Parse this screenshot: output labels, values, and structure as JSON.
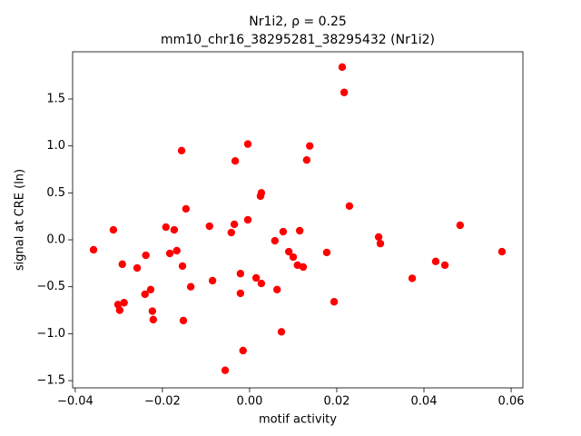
{
  "chart_data": {
    "type": "scatter",
    "title": "Nr1i2, ρ = 0.25",
    "subtitle": "mm10_chr16_38295281_38295432 (Nr1i2)",
    "x_label": "motif activity",
    "y_label": "signal at CRE (ln)",
    "color": "#ff0000",
    "x": [
      -0.0358,
      -0.03125,
      -0.0292,
      -0.0302,
      -0.0298,
      -0.0288,
      -0.0258,
      -0.0238,
      -0.024,
      -0.0227,
      -0.0223,
      -0.0221,
      -0.0192,
      -0.0183,
      -0.0173,
      -0.0167,
      -0.0156,
      -0.0154,
      -0.0152,
      -0.0146,
      -0.0135,
      -0.0092,
      -0.0085,
      -0.0056,
      -0.0042,
      -0.0035,
      -0.0033,
      -0.0021,
      -0.0021,
      -0.0015,
      -0.0004,
      -0.0004,
      0.0015,
      0.0025,
      0.0027,
      0.0027,
      0.0058,
      0.0063,
      0.0073,
      0.0077,
      0.009,
      0.01,
      0.011,
      0.0115,
      0.0123,
      0.0131,
      0.0138,
      0.0177,
      0.0194,
      0.02125,
      0.0217,
      0.0229,
      0.0296,
      0.03,
      0.0373,
      0.0427,
      0.0448,
      0.0483,
      0.0579
    ],
    "values": [
      -0.106,
      0.106,
      -0.26,
      -0.69,
      -0.75,
      -0.67,
      -0.3,
      -0.165,
      -0.58,
      -0.53,
      -0.76,
      -0.85,
      0.135,
      -0.145,
      0.106,
      -0.116,
      0.95,
      -0.28,
      -0.86,
      0.33,
      -0.5,
      0.145,
      -0.435,
      -1.39,
      0.077,
      0.165,
      0.84,
      -0.36,
      -0.57,
      -1.18,
      1.02,
      0.213,
      -0.406,
      0.465,
      0.5,
      -0.465,
      -0.01,
      -0.53,
      -0.98,
      0.087,
      -0.126,
      -0.184,
      -0.27,
      0.097,
      -0.29,
      0.85,
      1.0,
      -0.135,
      -0.66,
      1.84,
      1.57,
      0.36,
      0.03,
      -0.04,
      -0.41,
      -0.23,
      -0.27,
      0.155,
      -0.126
    ],
    "xlim": [
      -0.0406,
      0.0627
    ],
    "ylim": [
      -1.577,
      2.003
    ],
    "xticks": [
      {
        "value": -0.04,
        "label": "−0.04"
      },
      {
        "value": -0.02,
        "label": "−0.02"
      },
      {
        "value": 0,
        "label": "0.00"
      },
      0.02,
      0.04,
      0.06
    ],
    "yticks": [
      {
        "value": -1.5,
        "label": "−1.5"
      },
      {
        "value": -1,
        "label": "−1.0"
      },
      {
        "value": -0.5,
        "label": "−0.5"
      },
      {
        "value": 0,
        "label": "0.0"
      },
      0.5,
      {
        "value": 1,
        "label": "1.0"
      },
      1.5
    ]
  }
}
